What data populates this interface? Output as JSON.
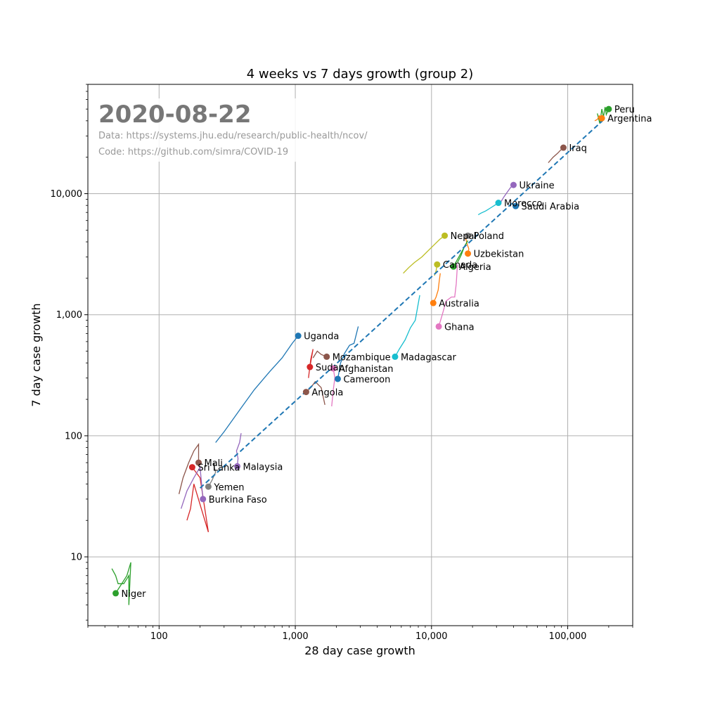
{
  "chart_data": {
    "type": "scatter",
    "title": "4 weeks vs 7 days growth (group 2)",
    "xlabel": "28 day case growth",
    "ylabel": "7 day case growth",
    "x_scale": "log",
    "y_scale": "log",
    "xlim": [
      30,
      300000
    ],
    "ylim": [
      2.7,
      80000
    ],
    "grid": true,
    "x_ticks": [
      {
        "value": 100,
        "label": "100"
      },
      {
        "value": 1000,
        "label": "1,000"
      },
      {
        "value": 10000,
        "label": "10,000"
      },
      {
        "value": 100000,
        "label": "100,000"
      }
    ],
    "y_ticks": [
      {
        "value": 10,
        "label": "10"
      },
      {
        "value": 100,
        "label": "100"
      },
      {
        "value": 1000,
        "label": "1,000"
      },
      {
        "value": 10000,
        "label": "10,000"
      }
    ],
    "annotations": {
      "date": "2020-08-22",
      "data_source": "Data: https://systems.jhu.edu/research/public-health/ncov/",
      "code_source": "Code: https://github.com/simra/COVID-19"
    },
    "trend_line": {
      "from": [
        200,
        37
      ],
      "to": [
        180000,
        40000
      ],
      "color": "#1f77b4",
      "style": "dashed"
    },
    "series": [
      {
        "name": "Peru",
        "color": "#2ca02c",
        "point": [
          200000,
          50000
        ],
        "trail": [
          [
            165000,
            46000
          ],
          [
            172000,
            38000
          ],
          [
            178000,
            50000
          ],
          [
            183000,
            43000
          ],
          [
            188000,
            52000
          ],
          [
            192000,
            45000
          ],
          [
            200000,
            50000
          ]
        ]
      },
      {
        "name": "Argentina",
        "color": "#ff7f0e",
        "point": [
          178000,
          42000
        ],
        "trail": [
          [
            158000,
            40000
          ],
          [
            165000,
            41000
          ],
          [
            170000,
            44000
          ],
          [
            175000,
            40000
          ],
          [
            178000,
            42000
          ]
        ]
      },
      {
        "name": "Iraq",
        "color": "#8c564b",
        "point": [
          93000,
          24000
        ],
        "trail": [
          [
            72000,
            18000
          ],
          [
            78000,
            20000
          ],
          [
            84000,
            21500
          ],
          [
            89000,
            23000
          ],
          [
            93000,
            24000
          ]
        ]
      },
      {
        "name": "Ukraine",
        "color": "#9467bd",
        "point": [
          40000,
          11800
        ],
        "trail": [
          [
            32000,
            8400
          ],
          [
            34000,
            9400
          ],
          [
            36000,
            10300
          ],
          [
            38000,
            11200
          ],
          [
            40000,
            11800
          ]
        ]
      },
      {
        "name": "Morocco",
        "color": "#17becf",
        "point": [
          31000,
          8400
        ],
        "trail": [
          [
            22000,
            6700
          ],
          [
            23000,
            6900
          ],
          [
            25000,
            7200
          ],
          [
            27000,
            7600
          ],
          [
            29000,
            8000
          ],
          [
            31000,
            8400
          ]
        ]
      },
      {
        "name": "Saudi Arabia",
        "color": "#1f77b4",
        "point": [
          41500,
          7900
        ],
        "trail": [
          [
            39000,
            8300
          ],
          [
            40000,
            8100
          ],
          [
            41500,
            7900
          ]
        ]
      },
      {
        "name": "Nepal",
        "color": "#bcbd22",
        "point": [
          12500,
          4500
        ],
        "trail": [
          [
            6200,
            2200
          ],
          [
            6800,
            2450
          ],
          [
            7500,
            2700
          ],
          [
            8500,
            3000
          ],
          [
            9500,
            3400
          ],
          [
            10500,
            3800
          ],
          [
            11500,
            4200
          ],
          [
            12500,
            4500
          ]
        ]
      },
      {
        "name": "Poland",
        "color": "#7f7f7f",
        "point": [
          18500,
          4500
        ],
        "trail": [
          [
            17500,
            4200
          ],
          [
            18000,
            4400
          ],
          [
            18500,
            4500
          ]
        ]
      },
      {
        "name": "Uzbekistan",
        "color": "#ff7f0e",
        "point": [
          18500,
          3200
        ],
        "trail": [
          [
            17800,
            4300
          ],
          [
            18300,
            3800
          ],
          [
            18800,
            3500
          ],
          [
            18500,
            3200
          ]
        ]
      },
      {
        "name": "Canada",
        "color": "#bcbd22",
        "point": [
          11000,
          2600
        ],
        "trail": [
          [
            10500,
            2100
          ],
          [
            10800,
            2300
          ],
          [
            11000,
            2600
          ]
        ]
      },
      {
        "name": "Algeria",
        "color": "#2ca02c",
        "point": [
          14500,
          2500
        ],
        "trail": [
          [
            15500,
            2700
          ],
          [
            16500,
            3100
          ],
          [
            17500,
            3700
          ],
          [
            18500,
            4100
          ],
          [
            14500,
            2500
          ]
        ]
      },
      {
        "name": "Australia",
        "color": "#ff7f0e",
        "point": [
          10300,
          1250
        ],
        "trail": [
          [
            11600,
            2200
          ],
          [
            11400,
            1900
          ],
          [
            11200,
            1600
          ],
          [
            10800,
            1400
          ],
          [
            10300,
            1250
          ]
        ]
      },
      {
        "name": "Ghana",
        "color": "#e377c2",
        "point": [
          11300,
          800
        ],
        "trail": [
          [
            15500,
            2600
          ],
          [
            15200,
            1800
          ],
          [
            14800,
            1400
          ],
          [
            14000,
            1400
          ],
          [
            12800,
            1300
          ],
          [
            12000,
            1000
          ],
          [
            11300,
            800
          ]
        ]
      },
      {
        "name": "Madagascar",
        "color": "#17becf",
        "point": [
          5400,
          450
        ],
        "trail": [
          [
            8200,
            1450
          ],
          [
            7600,
            900
          ],
          [
            7000,
            780
          ],
          [
            6400,
            620
          ],
          [
            5800,
            520
          ],
          [
            5400,
            450
          ]
        ]
      },
      {
        "name": "Uganda",
        "color": "#1f77b4",
        "point": [
          1050,
          670
        ],
        "trail": [
          [
            260,
            88
          ],
          [
            300,
            108
          ],
          [
            400,
            170
          ],
          [
            500,
            240
          ],
          [
            650,
            340
          ],
          [
            800,
            440
          ],
          [
            950,
            580
          ],
          [
            1050,
            670
          ]
        ]
      },
      {
        "name": "Mozambique",
        "color": "#8c564b",
        "point": [
          1700,
          450
        ],
        "trail": [
          [
            1350,
            440
          ],
          [
            1450,
            500
          ],
          [
            1550,
            470
          ],
          [
            1700,
            450
          ]
        ]
      },
      {
        "name": "Sudan",
        "color": "#d62728",
        "point": [
          1280,
          370
        ],
        "trail": [
          [
            1250,
            300
          ],
          [
            1300,
            430
          ],
          [
            1350,
            520
          ],
          [
            1280,
            370
          ]
        ]
      },
      {
        "name": "Afghanistan",
        "color": "#e377c2",
        "point": [
          1900,
          360
        ],
        "trail": [
          [
            1850,
            175
          ],
          [
            1900,
            240
          ],
          [
            1950,
            300
          ],
          [
            1900,
            360
          ]
        ]
      },
      {
        "name": "Cameroon",
        "color": "#1f77b4",
        "point": [
          2050,
          295
        ],
        "trail": [
          [
            2900,
            800
          ],
          [
            2700,
            580
          ],
          [
            2500,
            560
          ],
          [
            2300,
            480
          ],
          [
            2150,
            400
          ],
          [
            2050,
            295
          ]
        ]
      },
      {
        "name": "Angola",
        "color": "#8c564b",
        "point": [
          1200,
          230
        ],
        "trail": [
          [
            1650,
            180
          ],
          [
            1550,
            250
          ],
          [
            1400,
            280
          ],
          [
            1300,
            250
          ],
          [
            1200,
            230
          ]
        ]
      },
      {
        "name": "Mali",
        "color": "#8c564b",
        "point": [
          195,
          60
        ],
        "trail": [
          [
            140,
            33
          ],
          [
            150,
            45
          ],
          [
            165,
            60
          ],
          [
            180,
            75
          ],
          [
            195,
            85
          ],
          [
            195,
            60
          ]
        ]
      },
      {
        "name": "Sri Lanka",
        "color": "#d62728",
        "point": [
          175,
          55
        ],
        "trail": [
          [
            160,
            20
          ],
          [
            170,
            25
          ],
          [
            180,
            40
          ],
          [
            230,
            16
          ],
          [
            200,
            45
          ],
          [
            175,
            55
          ]
        ]
      },
      {
        "name": "Malaysia",
        "color": "#9467bd",
        "point": [
          375,
          56
        ],
        "trail": [
          [
            400,
            105
          ],
          [
            390,
            88
          ],
          [
            370,
            75
          ],
          [
            380,
            65
          ],
          [
            375,
            56
          ]
        ]
      },
      {
        "name": "Yemen",
        "color": "#7f7f7f",
        "point": [
          230,
          38
        ],
        "trail": [
          [
            250,
            60
          ],
          [
            260,
            50
          ],
          [
            245,
            43
          ],
          [
            230,
            38
          ]
        ]
      },
      {
        "name": "Burkina Faso",
        "color": "#9467bd",
        "point": [
          210,
          30
        ],
        "trail": [
          [
            145,
            25
          ],
          [
            160,
            35
          ],
          [
            180,
            45
          ],
          [
            200,
            55
          ],
          [
            210,
            30
          ]
        ]
      },
      {
        "name": "Niger",
        "color": "#2ca02c",
        "point": [
          48,
          5
        ],
        "trail": [
          [
            45,
            8
          ],
          [
            48,
            7
          ],
          [
            50,
            6
          ],
          [
            55,
            6
          ],
          [
            60,
            7
          ],
          [
            60,
            4
          ],
          [
            62,
            9
          ],
          [
            58,
            7
          ],
          [
            48,
            5
          ]
        ]
      }
    ]
  }
}
